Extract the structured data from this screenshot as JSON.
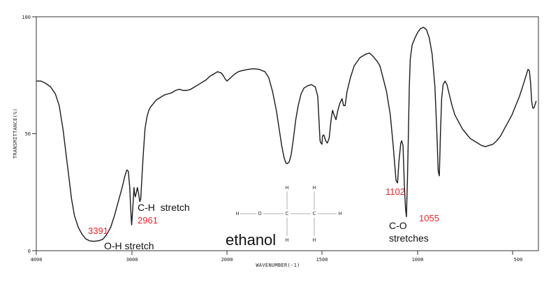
{
  "chart_data": {
    "type": "line",
    "xlabel": "WAVENUMBER(-1)",
    "ylabel": "TRANSMITTANCE(%)",
    "xlim": [
      4000,
      400
    ],
    "ylim": [
      0,
      100
    ],
    "x_ticks": [
      {
        "value": 4000,
        "label": "4000"
      },
      {
        "value": 3000,
        "label": "3000"
      },
      {
        "value": 2000,
        "label": "2000"
      },
      {
        "value": 1500,
        "label": "1500"
      },
      {
        "value": 1000,
        "label": "1000"
      },
      {
        "value": 500,
        "label": "500"
      }
    ],
    "y_ticks": [
      {
        "value": 100,
        "label": "100"
      },
      {
        "value": 50,
        "label": "50"
      },
      {
        "value": 0,
        "label": "0"
      }
    ],
    "x_break": {
      "left": 2000,
      "right": 1500
    },
    "series": [
      {
        "points": [
          [
            4000,
            72.5
          ],
          [
            3950,
            72.5
          ],
          [
            3900,
            71.5
          ],
          [
            3850,
            70
          ],
          [
            3800,
            67
          ],
          [
            3760,
            62
          ],
          [
            3720,
            52
          ],
          [
            3690,
            42
          ],
          [
            3660,
            32
          ],
          [
            3630,
            22
          ],
          [
            3600,
            15
          ],
          [
            3560,
            10
          ],
          [
            3520,
            7
          ],
          [
            3480,
            5
          ],
          [
            3440,
            4.2
          ],
          [
            3391,
            4
          ],
          [
            3340,
            4.3
          ],
          [
            3300,
            5
          ],
          [
            3260,
            7
          ],
          [
            3220,
            10
          ],
          [
            3180,
            15
          ],
          [
            3140,
            21
          ],
          [
            3100,
            27
          ],
          [
            3070,
            32
          ],
          [
            3050,
            34.5
          ],
          [
            3035,
            34
          ],
          [
            3020,
            27
          ],
          [
            3010,
            18
          ],
          [
            3000,
            11
          ],
          [
            2995,
            14
          ],
          [
            2985,
            20
          ],
          [
            2975,
            27
          ],
          [
            2970,
            24.5
          ],
          [
            2961,
            23
          ],
          [
            2950,
            25
          ],
          [
            2940,
            27
          ],
          [
            2925,
            24
          ],
          [
            2915,
            21
          ],
          [
            2905,
            22
          ],
          [
            2895,
            29
          ],
          [
            2880,
            40
          ],
          [
            2860,
            52
          ],
          [
            2840,
            57
          ],
          [
            2820,
            60
          ],
          [
            2800,
            61.5
          ],
          [
            2770,
            63
          ],
          [
            2740,
            64.5
          ],
          [
            2700,
            65.5
          ],
          [
            2660,
            66.5
          ],
          [
            2620,
            67
          ],
          [
            2580,
            67.5
          ],
          [
            2540,
            68.5
          ],
          [
            2500,
            69
          ],
          [
            2460,
            68.5
          ],
          [
            2420,
            68.5
          ],
          [
            2380,
            69
          ],
          [
            2340,
            70
          ],
          [
            2300,
            71
          ],
          [
            2260,
            72
          ],
          [
            2220,
            73
          ],
          [
            2180,
            74.5
          ],
          [
            2140,
            75.5
          ],
          [
            2100,
            76.5
          ],
          [
            2060,
            76
          ],
          [
            2040,
            75
          ],
          [
            2020,
            73.5
          ],
          [
            2000,
            72.5
          ],
          [
            1980,
            74
          ],
          [
            1960,
            75.5
          ],
          [
            1940,
            76.5
          ],
          [
            1920,
            77
          ],
          [
            1890,
            77.5
          ],
          [
            1860,
            77.8
          ],
          [
            1830,
            77.5
          ],
          [
            1800,
            76.5
          ],
          [
            1780,
            74
          ],
          [
            1760,
            68
          ],
          [
            1740,
            60
          ],
          [
            1725,
            52
          ],
          [
            1712,
            45
          ],
          [
            1700,
            40
          ],
          [
            1690,
            37.5
          ],
          [
            1682,
            37.2
          ],
          [
            1672,
            38
          ],
          [
            1662,
            41
          ],
          [
            1650,
            48
          ],
          [
            1638,
            56
          ],
          [
            1625,
            62
          ],
          [
            1610,
            67
          ],
          [
            1595,
            69.5
          ],
          [
            1575,
            70.5
          ],
          [
            1555,
            71
          ],
          [
            1535,
            70
          ],
          [
            1522,
            66
          ],
          [
            1515,
            55
          ],
          [
            1510,
            47
          ],
          [
            1505,
            46
          ],
          [
            1500,
            45.5
          ],
          [
            1497,
            49
          ],
          [
            1490,
            49.5
          ],
          [
            1480,
            47
          ],
          [
            1472,
            46
          ],
          [
            1462,
            48
          ],
          [
            1452,
            56
          ],
          [
            1444,
            60
          ],
          [
            1436,
            58
          ],
          [
            1426,
            56
          ],
          [
            1416,
            60
          ],
          [
            1406,
            63
          ],
          [
            1394,
            65
          ],
          [
            1386,
            62
          ],
          [
            1378,
            62
          ],
          [
            1368,
            68
          ],
          [
            1350,
            74
          ],
          [
            1330,
            79
          ],
          [
            1300,
            82.5
          ],
          [
            1270,
            84
          ],
          [
            1250,
            84.5
          ],
          [
            1230,
            83
          ],
          [
            1210,
            81
          ],
          [
            1195,
            79
          ],
          [
            1185,
            76
          ],
          [
            1160,
            68
          ],
          [
            1140,
            58
          ],
          [
            1125,
            45
          ],
          [
            1110,
            30
          ],
          [
            1102,
            29
          ],
          [
            1095,
            38
          ],
          [
            1085,
            46
          ],
          [
            1080,
            47
          ],
          [
            1073,
            45
          ],
          [
            1066,
            28
          ],
          [
            1060,
            18
          ],
          [
            1055,
            14.5
          ],
          [
            1050,
            30
          ],
          [
            1045,
            50
          ],
          [
            1040,
            70
          ],
          [
            1035,
            82
          ],
          [
            1025,
            88
          ],
          [
            1010,
            91
          ],
          [
            995,
            93.5
          ],
          [
            980,
            95
          ],
          [
            965,
            95.5
          ],
          [
            950,
            94.5
          ],
          [
            935,
            91
          ],
          [
            920,
            84
          ],
          [
            905,
            70
          ],
          [
            895,
            50
          ],
          [
            888,
            34
          ],
          [
            882,
            32
          ],
          [
            876,
            50
          ],
          [
            870,
            65
          ],
          [
            862,
            71
          ],
          [
            852,
            72.5
          ],
          [
            842,
            71
          ],
          [
            830,
            67
          ],
          [
            815,
            62
          ],
          [
            800,
            58
          ],
          [
            780,
            55
          ],
          [
            760,
            52
          ],
          [
            740,
            50
          ],
          [
            720,
            48
          ],
          [
            700,
            47
          ],
          [
            680,
            46
          ],
          [
            660,
            45
          ],
          [
            640,
            44.5
          ],
          [
            620,
            45
          ],
          [
            600,
            45.5
          ],
          [
            580,
            47
          ],
          [
            560,
            49
          ],
          [
            540,
            52
          ],
          [
            520,
            55
          ],
          [
            500,
            58
          ],
          [
            480,
            62
          ],
          [
            460,
            66
          ],
          [
            440,
            71
          ],
          [
            425,
            75
          ],
          [
            415,
            77.5
          ],
          [
            408,
            77
          ],
          [
            402,
            72
          ],
          [
            396,
            64
          ],
          [
            390,
            61
          ],
          [
            384,
            61
          ],
          [
            378,
            62.5
          ],
          [
            372,
            64
          ]
        ]
      }
    ],
    "annotations": [
      {
        "text": "3391",
        "color": "#e8262b"
      },
      {
        "text": "O-H stretch",
        "color": "#111111"
      },
      {
        "text": "2961",
        "color": "#e8262b"
      },
      {
        "text": "C-H  stretch",
        "color": "#111111"
      },
      {
        "text": "1102",
        "color": "#e8262b"
      },
      {
        "text": "1055",
        "color": "#e8262b"
      },
      {
        "text": "C-O",
        "color": "#111111"
      },
      {
        "text": "stretches",
        "color": "#111111"
      }
    ],
    "compound_name": "ethanol",
    "structure_atoms": [
      "H",
      "O",
      "C",
      "C",
      "H",
      "H",
      "H",
      "H",
      "H"
    ]
  }
}
